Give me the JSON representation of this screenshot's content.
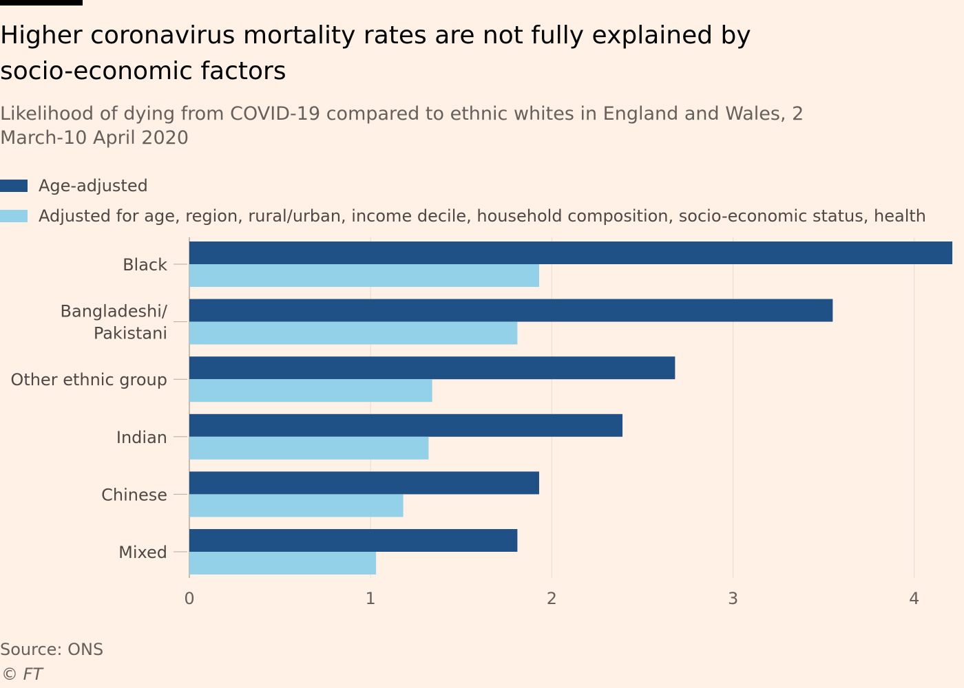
{
  "header": {
    "title": "Higher coronavirus mortality rates are not fully explained by socio-economic factors",
    "subtitle": "Likelihood of dying from COVID-19 compared to ethnic whites in England and Wales, 2 March-10 April 2020"
  },
  "footer": {
    "source": "Source: ONS",
    "copyright": "© FT"
  },
  "chart_data": {
    "type": "bar",
    "orientation": "horizontal",
    "title": "Higher coronavirus mortality rates are not fully explained by socio-economic factors",
    "subtitle": "Likelihood of dying from COVID-19 compared to ethnic whites in England and Wales, 2 March-10 April 2020",
    "categories": [
      "Black",
      "Bangladeshi/\nPakistani",
      "Other ethnic group",
      "Indian",
      "Chinese",
      "Mixed"
    ],
    "series": [
      {
        "name": "Age-adjusted",
        "color": "#1f5086",
        "values": [
          4.21,
          3.55,
          2.68,
          2.39,
          1.93,
          1.81
        ]
      },
      {
        "name": "Adjusted for age, region, rural/urban, income decile, household composition, socio-economic status, health",
        "color": "#92d1e8",
        "values": [
          1.93,
          1.81,
          1.34,
          1.32,
          1.18,
          1.03
        ]
      }
    ],
    "xticks": [
      "0",
      "1",
      "2",
      "3",
      "4"
    ],
    "xlim": [
      0,
      4.2
    ],
    "grid": true,
    "legend_position": "top-left"
  }
}
